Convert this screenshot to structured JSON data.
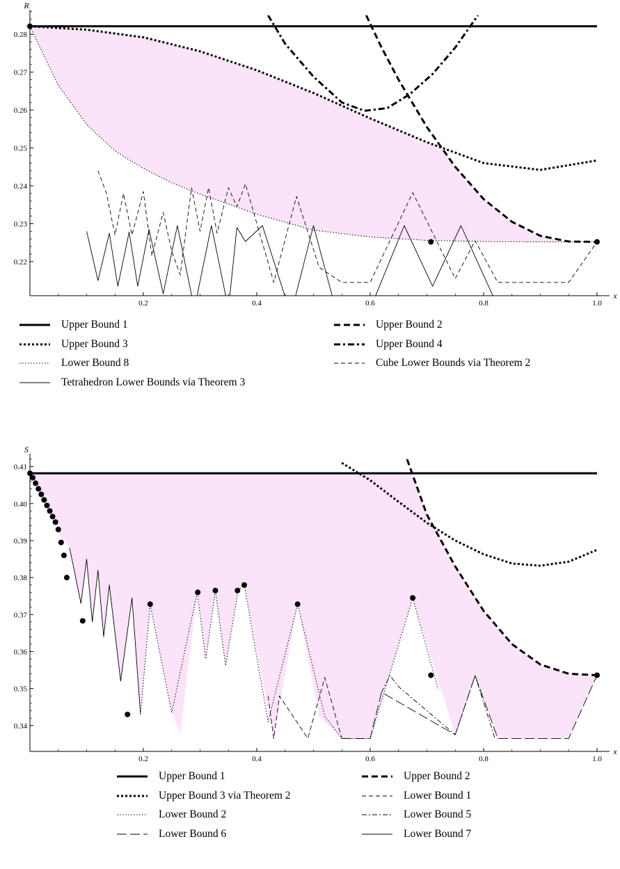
{
  "chart_data": [
    {
      "type": "line",
      "ylabel": "R",
      "xlabel": "x",
      "xlim": [
        0,
        1.0
      ],
      "ylim": [
        0.211,
        0.285
      ],
      "xticks": [
        "0.2",
        "0.4",
        "0.6",
        "0.8",
        "1.0"
      ],
      "yticks": [
        "0.22",
        "0.23",
        "0.24",
        "0.25",
        "0.26",
        "0.27",
        "0.28"
      ],
      "shaded_region": "pink band between Upper Bound 3 and Lower Bound 8, below Upper Bound 2",
      "legend_position": "below plot, two columns",
      "series": [
        {
          "name": "Upper Bound 1",
          "style": "thick solid",
          "x": [
            0,
            1
          ],
          "y": [
            0.2821,
            0.2821
          ]
        },
        {
          "name": "Upper Bound 2",
          "style": "thick dashed",
          "x": [
            0.593,
            0.62,
            0.65,
            0.7,
            0.75,
            0.8,
            0.85,
            0.9,
            0.95,
            1.0
          ],
          "y": [
            0.285,
            0.2765,
            0.268,
            0.2555,
            0.245,
            0.2365,
            0.2305,
            0.2268,
            0.2253,
            0.2252
          ]
        },
        {
          "name": "Upper Bound 3",
          "style": "thick dotted",
          "x": [
            0,
            0.1,
            0.2,
            0.3,
            0.4,
            0.5,
            0.6,
            0.7,
            0.8,
            0.9,
            1.0
          ],
          "y": [
            0.2821,
            0.2812,
            0.2792,
            0.2755,
            0.2705,
            0.2645,
            0.2578,
            0.2515,
            0.246,
            0.2442,
            0.2467
          ]
        },
        {
          "name": "Upper Bound 4",
          "style": "thick dash-dot",
          "x": [
            0.42,
            0.45,
            0.5,
            0.55,
            0.59,
            0.63,
            0.67,
            0.71,
            0.75,
            0.79
          ],
          "y": [
            0.285,
            0.2775,
            0.2688,
            0.262,
            0.2598,
            0.2605,
            0.2642,
            0.2695,
            0.2765,
            0.285
          ]
        },
        {
          "name": "Lower Bound 8",
          "style": "fine dotted",
          "x": [
            0,
            0.05,
            0.1,
            0.15,
            0.2,
            0.25,
            0.3,
            0.35,
            0.4,
            0.5,
            0.6,
            0.7,
            0.8,
            0.9,
            1.0
          ],
          "y": [
            0.2821,
            0.2665,
            0.2562,
            0.2492,
            0.2446,
            0.2408,
            0.2378,
            0.2352,
            0.2325,
            0.2283,
            0.2265,
            0.2256,
            0.2253,
            0.2252,
            0.2252
          ]
        },
        {
          "name": "Cube Lower Bounds via Theorem 2",
          "style": "thin dashed",
          "x": [
            0.12,
            0.135,
            0.15,
            0.165,
            0.18,
            0.2,
            0.215,
            0.235,
            0.25,
            0.265,
            0.285,
            0.3,
            0.315,
            0.33,
            0.35,
            0.365,
            0.38,
            0.43,
            0.47,
            0.51,
            0.55,
            0.6,
            0.675,
            0.75,
            0.785,
            0.825,
            0.95,
            1.0
          ],
          "y": [
            0.244,
            0.238,
            0.227,
            0.238,
            0.227,
            0.2385,
            0.2215,
            0.233,
            0.2228,
            0.2165,
            0.2395,
            0.228,
            0.2395,
            0.2275,
            0.2395,
            0.2345,
            0.2405,
            0.2145,
            0.2372,
            0.2185,
            0.2145,
            0.2145,
            0.2382,
            0.2155,
            0.2255,
            0.2145,
            0.2145,
            0.2252
          ]
        },
        {
          "name": "Tetrahedron Lower Bounds via Theorem 3",
          "style": "thin solid",
          "x": [
            0.1,
            0.12,
            0.14,
            0.155,
            0.175,
            0.19,
            0.21,
            0.235,
            0.26,
            0.29,
            0.32,
            0.35,
            0.365,
            0.38,
            0.41,
            0.46,
            0.5,
            0.54,
            0.6,
            0.66,
            0.71,
            0.76,
            0.83
          ],
          "y": [
            0.228,
            0.215,
            0.2275,
            0.2135,
            0.2278,
            0.2135,
            0.2285,
            0.2115,
            0.2295,
            0.2075,
            0.2295,
            0.2075,
            0.229,
            0.2253,
            0.2295,
            0.206,
            0.2295,
            0.207,
            0.2075,
            0.2295,
            0.2135,
            0.2295,
            0.2065
          ]
        }
      ],
      "points": [
        {
          "x": 0.0,
          "y": 0.2821
        },
        {
          "x": 0.7071,
          "y": 0.2252
        },
        {
          "x": 1.0,
          "y": 0.2252
        }
      ]
    },
    {
      "type": "line",
      "ylabel": "S",
      "xlabel": "x",
      "xlim": [
        0,
        1.0
      ],
      "ylim": [
        0.333,
        0.412
      ],
      "xticks": [
        "0.2",
        "0.4",
        "0.6",
        "0.8",
        "1.0"
      ],
      "yticks": [
        "0.34",
        "0.35",
        "0.36",
        "0.37",
        "0.38",
        "0.39",
        "0.40",
        "0.41"
      ],
      "shaded_region": "pink region below Upper Bound 1 and Upper Bound 2, above lower bounds",
      "legend_position": "below plot, two columns",
      "series": [
        {
          "name": "Upper Bound 1",
          "style": "thick solid",
          "x": [
            0,
            1
          ],
          "y": [
            0.4082,
            0.4082
          ]
        },
        {
          "name": "Upper Bound 2",
          "style": "thick dashed",
          "x": [
            0.665,
            0.7,
            0.75,
            0.8,
            0.85,
            0.9,
            0.95,
            1.0
          ],
          "y": [
            0.412,
            0.397,
            0.383,
            0.371,
            0.362,
            0.3565,
            0.354,
            0.3536
          ]
        },
        {
          "name": "Upper Bound 3 via Theorem 2",
          "style": "thick dotted",
          "x": [
            0.55,
            0.6,
            0.65,
            0.7,
            0.75,
            0.8,
            0.85,
            0.9,
            0.95,
            1.0
          ],
          "y": [
            0.411,
            0.4063,
            0.4005,
            0.3948,
            0.39,
            0.3863,
            0.3838,
            0.3832,
            0.3843,
            0.3875
          ]
        },
        {
          "name": "Lower Bound 1",
          "style": "long dashed",
          "x": [
            0.42,
            0.43,
            0.44,
            0.49,
            0.52,
            0.55
          ],
          "y": [
            0.348,
            0.3365,
            0.348,
            0.3365,
            0.353,
            0.3365
          ]
        },
        {
          "name": "Lower Bound 2",
          "style": "fine dotted",
          "x": [
            0.195,
            0.212,
            0.25,
            0.295,
            0.31,
            0.327,
            0.345,
            0.367,
            0.378,
            0.42,
            0.472,
            0.52,
            0.55,
            0.6,
            0.675,
            0.72
          ],
          "y": [
            0.343,
            0.3728,
            0.3435,
            0.376,
            0.358,
            0.3765,
            0.3562,
            0.3765,
            0.378,
            0.341,
            0.3728,
            0.3425,
            0.3365,
            0.3365,
            0.3745,
            0.3498
          ]
        },
        {
          "name": "Lower Bound 5",
          "style": "dash-dot",
          "x": [
            0.62,
            0.635,
            0.65,
            0.75,
            0.785,
            0.82
          ],
          "y": [
            0.349,
            0.3535,
            0.3505,
            0.3375,
            0.3535,
            0.3365
          ]
        },
        {
          "name": "Lower Bound 6",
          "style": "long dash short gap",
          "x": [
            0.55,
            0.6,
            0.62,
            0.75,
            0.785,
            0.825,
            0.95,
            1.0
          ],
          "y": [
            0.3365,
            0.3365,
            0.349,
            0.3375,
            0.3535,
            0.3365,
            0.3365,
            0.3536
          ]
        },
        {
          "name": "Lower Bound 7",
          "style": "thin solid",
          "x": [
            0.07,
            0.09,
            0.1,
            0.11,
            0.12,
            0.13,
            0.14,
            0.16,
            0.18,
            0.195
          ],
          "y": [
            0.388,
            0.373,
            0.385,
            0.368,
            0.382,
            0.364,
            0.378,
            0.352,
            0.3745,
            0.343
          ]
        }
      ],
      "points": [
        {
          "x": 0.0,
          "y": 0.4082
        },
        {
          "x": 0.005,
          "y": 0.407
        },
        {
          "x": 0.01,
          "y": 0.4055
        },
        {
          "x": 0.015,
          "y": 0.404
        },
        {
          "x": 0.02,
          "y": 0.4025
        },
        {
          "x": 0.025,
          "y": 0.401
        },
        {
          "x": 0.03,
          "y": 0.3995
        },
        {
          "x": 0.035,
          "y": 0.398
        },
        {
          "x": 0.04,
          "y": 0.3965
        },
        {
          "x": 0.045,
          "y": 0.395
        },
        {
          "x": 0.05,
          "y": 0.393
        },
        {
          "x": 0.055,
          "y": 0.3895
        },
        {
          "x": 0.06,
          "y": 0.386
        },
        {
          "x": 0.065,
          "y": 0.38
        },
        {
          "x": 0.093,
          "y": 0.3683
        },
        {
          "x": 0.172,
          "y": 0.343
        },
        {
          "x": 0.212,
          "y": 0.3728
        },
        {
          "x": 0.296,
          "y": 0.376
        },
        {
          "x": 0.327,
          "y": 0.3765
        },
        {
          "x": 0.366,
          "y": 0.3765
        },
        {
          "x": 0.378,
          "y": 0.378
        },
        {
          "x": 0.472,
          "y": 0.3728
        },
        {
          "x": 0.675,
          "y": 0.3745
        },
        {
          "x": 0.707,
          "y": 0.3536
        },
        {
          "x": 1.0,
          "y": 0.3536
        }
      ]
    }
  ],
  "legend_top": [
    {
      "label": "Upper Bound 1",
      "style": "thick-solid"
    },
    {
      "label": "Upper Bound 2",
      "style": "thick-dashed"
    },
    {
      "label": "Upper Bound 3",
      "style": "thick-dotted"
    },
    {
      "label": "Upper Bound 4",
      "style": "thick-dashdot"
    },
    {
      "label": "Lower Bound 8",
      "style": "fine-dotted"
    },
    {
      "label": "Cube Lower Bounds via Theorem 2",
      "style": "thin-dashed"
    },
    {
      "label": "Tetrahedron Lower Bounds via Theorem 3",
      "style": "thin-solid"
    }
  ],
  "legend_bottom": [
    {
      "label": "Upper Bound 1",
      "style": "thick-solid"
    },
    {
      "label": "Upper Bound 2",
      "style": "thick-dashed"
    },
    {
      "label": "Upper Bound 3 via Theorem 2",
      "style": "thick-dotted"
    },
    {
      "label": "Lower Bound 1",
      "style": "thin-dashed"
    },
    {
      "label": "Lower Bound 2",
      "style": "fine-dotted"
    },
    {
      "label": "Lower Bound 5",
      "style": "dashdot"
    },
    {
      "label": "Lower Bound 6",
      "style": "longdash"
    },
    {
      "label": "Lower Bound 7",
      "style": "thin-solid"
    }
  ],
  "colors": {
    "fill": "#fbe3fa",
    "line": "#000000"
  }
}
